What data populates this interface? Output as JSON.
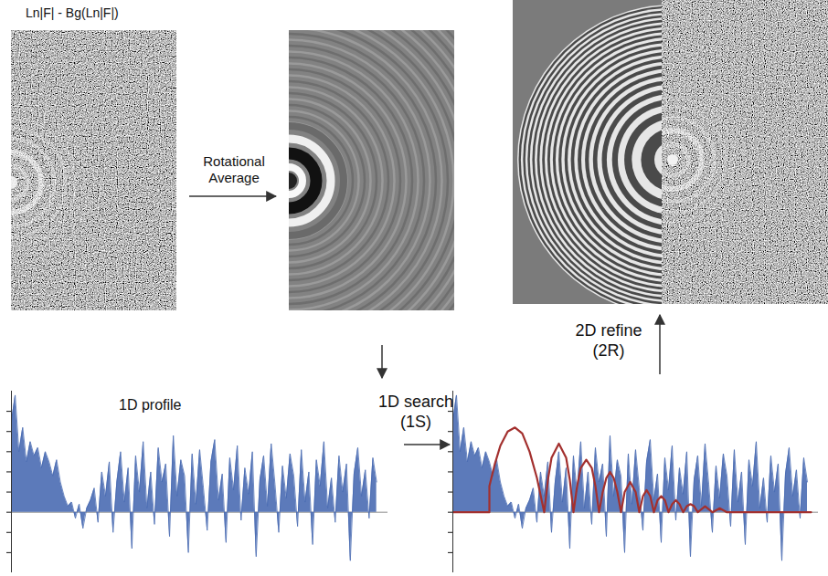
{
  "diagram": {
    "input_label": "Ln|F| - Bg(Ln|F|)",
    "rotational_average": "Rotational Average",
    "search_label": "1D search",
    "search_code": "(1S)",
    "refine_label": "2D refine",
    "refine_code": "(2R)"
  },
  "chart_data": [
    {
      "type": "area",
      "title": "1D profile",
      "xlim": [
        0,
        100
      ],
      "ylim": [
        -3,
        6
      ],
      "yticks": [
        -2,
        -1,
        0,
        1,
        2,
        3,
        4,
        5
      ],
      "tick_labels": false,
      "color": "#4a6cb3",
      "values": [
        4.5,
        5.8,
        3.0,
        4.2,
        2.5,
        3.5,
        2.8,
        3.2,
        2.2,
        3.0,
        2.5,
        1.8,
        2.6,
        1.5,
        0.8,
        0.3,
        0.5,
        -0.3,
        0.4,
        -0.8,
        0.2,
        0.6,
        1.2,
        -0.5,
        2.0,
        0.8,
        2.5,
        -1.0,
        1.5,
        3.0,
        0.5,
        2.2,
        -1.8,
        2.8,
        1.0,
        3.5,
        0.2,
        2.0,
        -0.6,
        3.2,
        1.5,
        2.4,
        -1.2,
        3.8,
        0.8,
        2.6,
        1.8,
        -2.0,
        2.9,
        0.4,
        3.1,
        1.2,
        -0.9,
        2.5,
        3.6,
        0.6,
        1.9,
        -1.5,
        2.7,
        1.1,
        3.3,
        -0.4,
        2.2,
        0.9,
        3.0,
        -2.2,
        1.6,
        2.8,
        0.3,
        3.4,
        1.4,
        -1.0,
        2.3,
        0.7,
        2.9,
        1.8,
        -0.7,
        3.1,
        0.5,
        2.0,
        -1.6,
        2.6,
        1.3,
        3.5,
        0.2,
        1.7,
        -0.5,
        2.8,
        1.0,
        2.4,
        -2.4,
        1.9,
        3.2,
        0.8,
        2.1,
        -0.3,
        2.7,
        1.5
      ]
    },
    {
      "type": "line",
      "xlim": [
        0,
        100
      ],
      "ylim": [
        -3,
        6
      ],
      "yticks": [
        -2,
        -1,
        0,
        1,
        2,
        3,
        4,
        5
      ],
      "tick_labels": false,
      "series": [
        {
          "type": "area",
          "color": "#4a6cb3",
          "values": [
            4.5,
            5.8,
            3.0,
            4.2,
            2.5,
            3.5,
            2.8,
            3.2,
            2.2,
            3.0,
            2.5,
            1.8,
            2.6,
            1.5,
            0.8,
            0.3,
            0.5,
            -0.3,
            0.4,
            -0.8,
            0.2,
            0.6,
            1.2,
            -0.5,
            2.0,
            0.8,
            2.5,
            -1.0,
            1.5,
            3.0,
            0.5,
            2.2,
            -1.8,
            2.8,
            1.0,
            3.5,
            0.2,
            2.0,
            -0.6,
            3.2,
            1.5,
            2.4,
            -1.2,
            3.8,
            0.8,
            2.6,
            1.8,
            -2.0,
            2.9,
            0.4,
            3.1,
            1.2,
            -0.9,
            2.5,
            3.6,
            0.6,
            1.9,
            -1.5,
            2.7,
            1.1,
            3.3,
            -0.4,
            2.2,
            0.9,
            3.0,
            -2.2,
            1.6,
            2.8,
            0.3,
            3.4,
            1.4,
            -1.0,
            2.3,
            0.7,
            2.9,
            1.8,
            -0.7,
            3.1,
            0.5,
            2.0,
            -1.6,
            2.6,
            1.3,
            3.5,
            0.2,
            1.7,
            -0.5,
            2.8,
            1.0,
            2.4,
            -2.4,
            1.9,
            3.2,
            0.8,
            2.1,
            -0.3,
            2.7,
            1.5
          ]
        },
        {
          "type": "line",
          "color": "#a3302e",
          "x": [
            0,
            10,
            10,
            11.5,
            13,
            15,
            17,
            19,
            21,
            23,
            25,
            26,
            27,
            29,
            31,
            32,
            33,
            34,
            35,
            36.5,
            38,
            39,
            40,
            41,
            42,
            43,
            44,
            45,
            46,
            47,
            48.5,
            50,
            51,
            52,
            53,
            54,
            55,
            56,
            57,
            58,
            59,
            60,
            61,
            62,
            63,
            64,
            65,
            66,
            67,
            69,
            71,
            73,
            75,
            98
          ],
          "values": [
            0,
            0,
            1.3,
            2.4,
            3.3,
            4.0,
            4.2,
            3.9,
            3.0,
            1.7,
            0,
            1.6,
            2.7,
            3.4,
            2.7,
            1.6,
            0,
            1.3,
            2.2,
            2.6,
            2.2,
            1.3,
            0,
            1.0,
            1.7,
            2.0,
            1.7,
            1.0,
            0,
            1.0,
            1.5,
            1.0,
            0,
            0.8,
            1.1,
            0.8,
            0,
            0.6,
            0.8,
            0.6,
            0,
            0.4,
            0.6,
            0.4,
            0,
            0.3,
            0.4,
            0.3,
            0,
            0.3,
            0,
            0.2,
            0,
            0
          ]
        }
      ]
    }
  ]
}
